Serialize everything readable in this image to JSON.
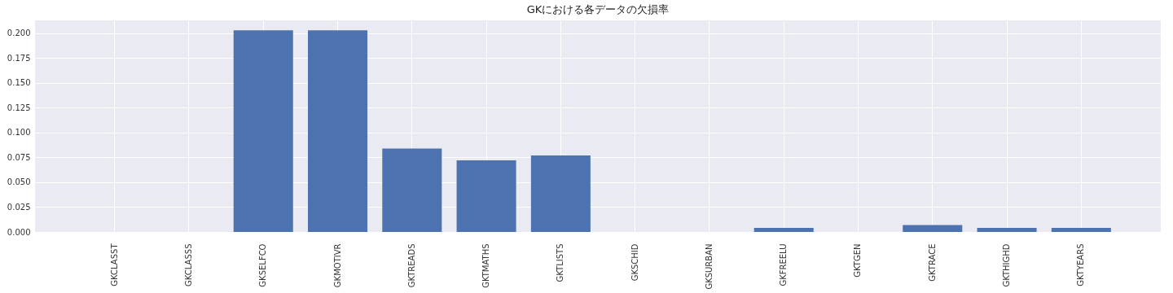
{
  "chart_data": {
    "type": "bar",
    "title": "GKにおける各データの欠損率",
    "categories": [
      "GKCLASST",
      "GKCLASSS",
      "GKSELFCO",
      "GKMOTIVR",
      "GKTREADS",
      "GKTMATHS",
      "GKTLISTS",
      "GKSCHID",
      "GKSURBAN",
      "GKFREELU",
      "GKTGEN",
      "GKTRACE",
      "GKTHIGHD",
      "GKTYEARS"
    ],
    "values": [
      0,
      0,
      0.203,
      0.203,
      0.084,
      0.072,
      0.077,
      0,
      0,
      0.004,
      0,
      0.007,
      0.004,
      0.004
    ],
    "color": "#4c72b0",
    "ylim": [
      0,
      0.213
    ],
    "yticks": [
      {
        "value": 0,
        "label": "0.000"
      },
      {
        "value": 0.025,
        "label": "0.025"
      },
      {
        "value": 0.05,
        "label": "0.050"
      },
      {
        "value": 0.075,
        "label": "0.075"
      },
      {
        "value": 0.1,
        "label": "0.100"
      },
      {
        "value": 0.125,
        "label": "0.125"
      },
      {
        "value": 0.15,
        "label": "0.150"
      },
      {
        "value": 0.175,
        "label": "0.175"
      },
      {
        "value": 0.2,
        "label": "0.200"
      }
    ],
    "grid": true
  }
}
